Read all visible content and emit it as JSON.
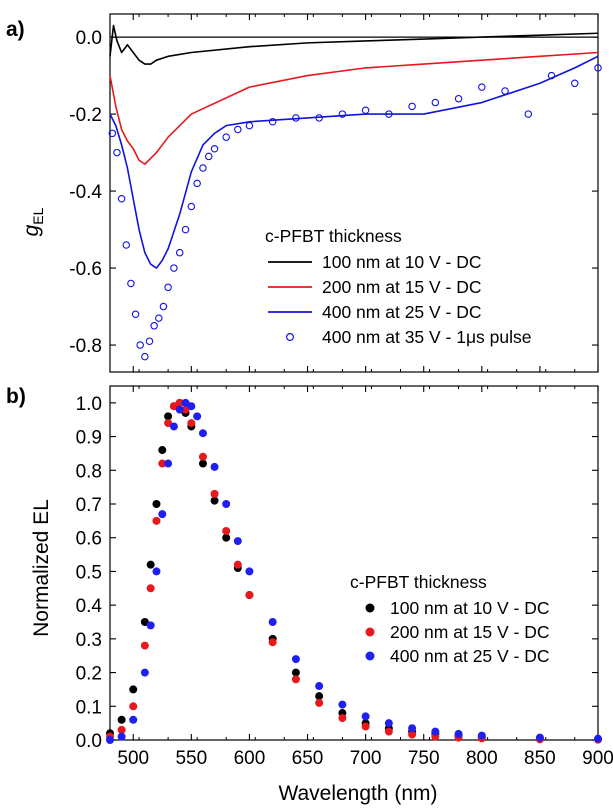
{
  "figure": {
    "x_title": "Wavelength (nm)"
  },
  "panels": [
    {
      "label": "a)",
      "y_title_main": "g",
      "y_title_sub": "EL"
    },
    {
      "label": "b)",
      "y_title_main": "Normalized EL",
      "y_title_sub": ""
    }
  ],
  "chart_data": [
    {
      "type": "line",
      "panel_label": "a)",
      "xlabel": "Wavelength (nm)",
      "ylabel": "gEL",
      "xlim": [
        480,
        900
      ],
      "ylim": [
        -0.87,
        0.06
      ],
      "x_ticks": [
        500,
        550,
        600,
        650,
        700,
        750,
        800,
        850,
        900
      ],
      "y_ticks": [
        0.0,
        -0.2,
        -0.4,
        -0.6,
        -0.8
      ],
      "y_tick_labels": [
        "0.0",
        "-0.2",
        "-0.4",
        "-0.6",
        "-0.8"
      ],
      "zero_line": true,
      "legend": {
        "title": "c-PFBT thickness",
        "position": "lower-right"
      },
      "series": [
        {
          "name": "100 nm at 10 V - DC",
          "style": "line",
          "color": "#000000",
          "x": [
            480,
            483,
            486,
            490,
            495,
            500,
            505,
            510,
            515,
            520,
            530,
            550,
            600,
            650,
            700,
            750,
            800,
            850,
            900
          ],
          "y": [
            -0.05,
            0.03,
            -0.01,
            -0.04,
            -0.02,
            -0.04,
            -0.06,
            -0.07,
            -0.07,
            -0.06,
            -0.05,
            -0.04,
            -0.025,
            -0.015,
            -0.01,
            -0.005,
            0.0,
            0.005,
            0.01
          ]
        },
        {
          "name": "200 nm at 15 V - DC",
          "style": "line",
          "color": "#e8191c",
          "x": [
            480,
            485,
            490,
            495,
            500,
            505,
            510,
            520,
            530,
            550,
            600,
            650,
            700,
            750,
            800,
            850,
            900
          ],
          "y": [
            -0.1,
            -0.18,
            -0.24,
            -0.27,
            -0.29,
            -0.32,
            -0.33,
            -0.3,
            -0.26,
            -0.2,
            -0.13,
            -0.1,
            -0.08,
            -0.07,
            -0.06,
            -0.05,
            -0.04
          ]
        },
        {
          "name": "400 nm at 25 V - DC",
          "style": "line",
          "color": "#1212e0",
          "x": [
            480,
            485,
            490,
            495,
            500,
            505,
            510,
            515,
            520,
            525,
            530,
            540,
            550,
            560,
            570,
            580,
            600,
            650,
            700,
            750,
            800,
            850,
            880,
            900
          ],
          "y": [
            -0.2,
            -0.23,
            -0.28,
            -0.34,
            -0.42,
            -0.5,
            -0.56,
            -0.59,
            -0.6,
            -0.58,
            -0.55,
            -0.46,
            -0.35,
            -0.28,
            -0.25,
            -0.23,
            -0.22,
            -0.21,
            -0.2,
            -0.2,
            -0.17,
            -0.12,
            -0.08,
            -0.05
          ]
        },
        {
          "name": "400 nm at 35 V - 1μs pulse",
          "style": "markers-open",
          "color": "#1212e0",
          "x": [
            482,
            486,
            490,
            494,
            498,
            502,
            506,
            510,
            514,
            518,
            522,
            526,
            530,
            535,
            540,
            545,
            550,
            555,
            560,
            565,
            570,
            580,
            590,
            600,
            620,
            640,
            660,
            680,
            700,
            720,
            740,
            760,
            780,
            800,
            820,
            840,
            860,
            880,
            900
          ],
          "y": [
            -0.25,
            -0.3,
            -0.42,
            -0.54,
            -0.64,
            -0.72,
            -0.8,
            -0.83,
            -0.79,
            -0.75,
            -0.73,
            -0.7,
            -0.65,
            -0.6,
            -0.56,
            -0.5,
            -0.44,
            -0.38,
            -0.34,
            -0.31,
            -0.29,
            -0.26,
            -0.24,
            -0.23,
            -0.22,
            -0.21,
            -0.21,
            -0.2,
            -0.19,
            -0.2,
            -0.18,
            -0.17,
            -0.16,
            -0.13,
            -0.14,
            -0.2,
            -0.1,
            -0.12,
            -0.08
          ]
        }
      ]
    },
    {
      "type": "scatter",
      "panel_label": "b)",
      "xlabel": "Wavelength (nm)",
      "ylabel": "Normalized EL",
      "xlim": [
        480,
        900
      ],
      "ylim": [
        0.0,
        1.05
      ],
      "x_ticks": [
        500,
        550,
        600,
        650,
        700,
        750,
        800,
        850,
        900
      ],
      "y_ticks": [
        0.0,
        0.1,
        0.2,
        0.3,
        0.4,
        0.5,
        0.6,
        0.7,
        0.8,
        0.9,
        1.0
      ],
      "y_tick_labels": [
        "0.0",
        "0.1",
        "0.2",
        "0.3",
        "0.4",
        "0.5",
        "0.6",
        "0.7",
        "0.8",
        "0.9",
        "1.0"
      ],
      "legend": {
        "title": "c-PFBT thickness",
        "position": "right"
      },
      "series": [
        {
          "name": "100 nm at 10 V - DC",
          "color": "#000000",
          "x": [
            480,
            490,
            500,
            510,
            515,
            520,
            525,
            530,
            535,
            540,
            545,
            550,
            560,
            570,
            580,
            590,
            600,
            620,
            640,
            660,
            680,
            700,
            720,
            740,
            760,
            780,
            800,
            850,
            900
          ],
          "y": [
            0.02,
            0.06,
            0.15,
            0.35,
            0.52,
            0.7,
            0.86,
            0.96,
            0.99,
            1.0,
            0.97,
            0.93,
            0.82,
            0.71,
            0.6,
            0.51,
            0.43,
            0.3,
            0.2,
            0.13,
            0.08,
            0.05,
            0.035,
            0.025,
            0.018,
            0.012,
            0.008,
            0.004,
            0.002
          ]
        },
        {
          "name": "200 nm at 15 V - DC",
          "color": "#e8191c",
          "x": [
            480,
            490,
            500,
            510,
            515,
            520,
            525,
            530,
            535,
            540,
            545,
            550,
            560,
            570,
            580,
            590,
            600,
            620,
            640,
            660,
            680,
            700,
            720,
            740,
            760,
            780,
            800,
            850,
            900
          ],
          "y": [
            0.01,
            0.03,
            0.1,
            0.28,
            0.45,
            0.65,
            0.82,
            0.94,
            0.99,
            1.0,
            0.98,
            0.94,
            0.84,
            0.73,
            0.62,
            0.52,
            0.43,
            0.29,
            0.18,
            0.11,
            0.065,
            0.04,
            0.025,
            0.016,
            0.01,
            0.007,
            0.005,
            0.002,
            0.001
          ]
        },
        {
          "name": "400 nm at 25 V - DC",
          "color": "#1f1ff0",
          "x": [
            480,
            490,
            500,
            510,
            515,
            520,
            525,
            530,
            535,
            540,
            545,
            550,
            555,
            560,
            570,
            580,
            590,
            600,
            620,
            640,
            660,
            680,
            700,
            720,
            740,
            760,
            780,
            800,
            850,
            900
          ],
          "y": [
            0.0,
            0.01,
            0.06,
            0.2,
            0.34,
            0.5,
            0.67,
            0.82,
            0.93,
            0.98,
            1.0,
            0.99,
            0.96,
            0.91,
            0.81,
            0.7,
            0.59,
            0.5,
            0.35,
            0.24,
            0.16,
            0.105,
            0.07,
            0.05,
            0.035,
            0.025,
            0.018,
            0.013,
            0.007,
            0.004
          ]
        }
      ]
    }
  ]
}
